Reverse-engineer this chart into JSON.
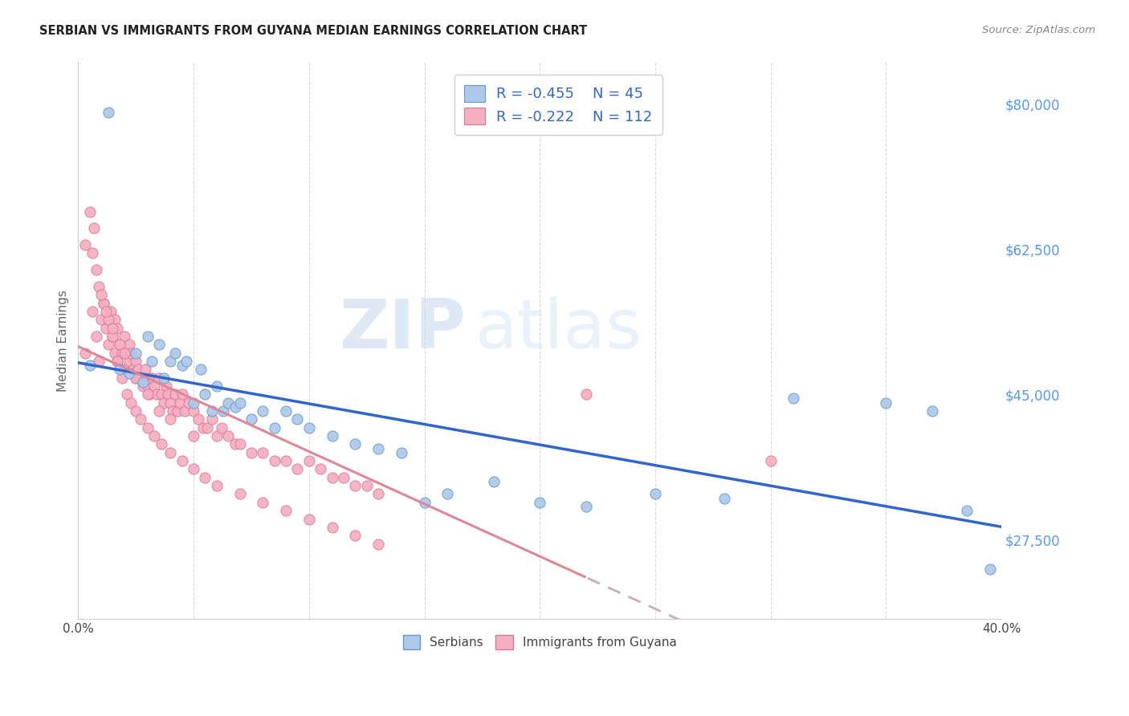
{
  "title": "SERBIAN VS IMMIGRANTS FROM GUYANA MEDIAN EARNINGS CORRELATION CHART",
  "source": "Source: ZipAtlas.com",
  "ylabel": "Median Earnings",
  "y_ticks": [
    27500,
    45000,
    62500,
    80000
  ],
  "y_tick_labels": [
    "$27,500",
    "$45,000",
    "$62,500",
    "$80,000"
  ],
  "x_min": 0.0,
  "x_max": 0.4,
  "y_min": 18000,
  "y_max": 85000,
  "serbian_color": "#adc8e8",
  "serbian_edge_color": "#6699cc",
  "guyana_color": "#f5afc0",
  "guyana_edge_color": "#dd7799",
  "serbian_line_color": "#3366cc",
  "guyana_line_color": "#dd8899",
  "guyana_dashed_color": "#ccaabb",
  "legend_label_serbian": "R = -0.455    N = 45",
  "legend_label_guyana": "R = -0.222    N = 112",
  "watermark_zip": "ZIP",
  "watermark_atlas": "atlas",
  "x_tick_labels": [
    "0.0%",
    "",
    "",
    "",
    "",
    "",
    "",
    "",
    "40.0%"
  ],
  "bottom_legend_labels": [
    "Serbians",
    "Immigrants from Guyana"
  ],
  "serbian_x": [
    0.005,
    0.013,
    0.018,
    0.022,
    0.025,
    0.028,
    0.03,
    0.032,
    0.035,
    0.037,
    0.04,
    0.042,
    0.045,
    0.047,
    0.05,
    0.053,
    0.055,
    0.058,
    0.06,
    0.063,
    0.065,
    0.068,
    0.07,
    0.075,
    0.08,
    0.085,
    0.09,
    0.095,
    0.1,
    0.11,
    0.12,
    0.13,
    0.14,
    0.15,
    0.16,
    0.18,
    0.2,
    0.22,
    0.25,
    0.28,
    0.31,
    0.35,
    0.37,
    0.385,
    0.395
  ],
  "serbian_y": [
    48500,
    79000,
    48000,
    47500,
    50000,
    46500,
    52000,
    49000,
    51000,
    47000,
    49000,
    50000,
    48500,
    49000,
    44000,
    48000,
    45000,
    43000,
    46000,
    43000,
    44000,
    43500,
    44000,
    42000,
    43000,
    41000,
    43000,
    42000,
    41000,
    40000,
    39000,
    38500,
    38000,
    32000,
    33000,
    34500,
    32000,
    31500,
    33000,
    32500,
    44500,
    44000,
    43000,
    31000,
    24000
  ],
  "guyana_x": [
    0.003,
    0.006,
    0.008,
    0.009,
    0.01,
    0.011,
    0.012,
    0.013,
    0.014,
    0.015,
    0.016,
    0.016,
    0.017,
    0.017,
    0.018,
    0.019,
    0.02,
    0.02,
    0.021,
    0.022,
    0.022,
    0.023,
    0.024,
    0.025,
    0.025,
    0.026,
    0.027,
    0.028,
    0.029,
    0.03,
    0.03,
    0.031,
    0.032,
    0.033,
    0.034,
    0.035,
    0.036,
    0.037,
    0.038,
    0.039,
    0.04,
    0.041,
    0.042,
    0.043,
    0.044,
    0.045,
    0.046,
    0.048,
    0.05,
    0.052,
    0.054,
    0.056,
    0.058,
    0.06,
    0.062,
    0.065,
    0.068,
    0.07,
    0.075,
    0.08,
    0.085,
    0.09,
    0.095,
    0.1,
    0.105,
    0.11,
    0.115,
    0.12,
    0.125,
    0.13,
    0.003,
    0.005,
    0.007,
    0.009,
    0.011,
    0.013,
    0.015,
    0.017,
    0.019,
    0.021,
    0.023,
    0.025,
    0.027,
    0.03,
    0.033,
    0.036,
    0.04,
    0.045,
    0.05,
    0.055,
    0.06,
    0.07,
    0.08,
    0.09,
    0.1,
    0.11,
    0.12,
    0.13,
    0.006,
    0.008,
    0.01,
    0.012,
    0.015,
    0.018,
    0.02,
    0.025,
    0.03,
    0.035,
    0.04,
    0.05,
    0.22,
    0.3
  ],
  "guyana_y": [
    50000,
    55000,
    52000,
    49000,
    54000,
    56000,
    53000,
    51000,
    55000,
    52000,
    50000,
    54000,
    53000,
    49000,
    51000,
    50000,
    48000,
    52000,
    50000,
    49000,
    51000,
    50000,
    48000,
    47000,
    49000,
    48000,
    47000,
    46000,
    48000,
    47000,
    46000,
    45000,
    47000,
    46000,
    45000,
    47000,
    45000,
    44000,
    46000,
    45000,
    44000,
    43000,
    45000,
    43000,
    44000,
    45000,
    43000,
    44000,
    43000,
    42000,
    41000,
    41000,
    42000,
    40000,
    41000,
    40000,
    39000,
    39000,
    38000,
    38000,
    37000,
    37000,
    36000,
    37000,
    36000,
    35000,
    35000,
    34000,
    34000,
    33000,
    63000,
    67000,
    65000,
    58000,
    56000,
    54000,
    52000,
    49000,
    47000,
    45000,
    44000,
    43000,
    42000,
    41000,
    40000,
    39000,
    38000,
    37000,
    36000,
    35000,
    34000,
    33000,
    32000,
    31000,
    30000,
    29000,
    28000,
    27000,
    62000,
    60000,
    57000,
    55000,
    53000,
    51000,
    50000,
    47000,
    45000,
    43000,
    42000,
    40000,
    45000,
    37000
  ]
}
